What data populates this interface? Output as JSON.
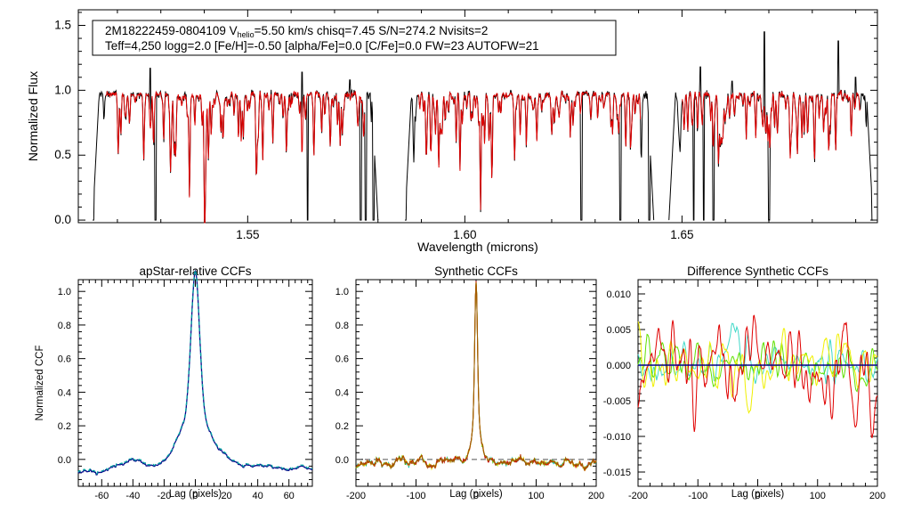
{
  "chart_data": [
    {
      "type": "line",
      "panel": "spectrum",
      "title": "",
      "xlabel": "Wavelength (microns)",
      "ylabel": "Normalized Flux",
      "xlim": [
        1.511,
        1.695
      ],
      "ylim": [
        -0.02,
        1.62
      ],
      "xticks": [
        1.55,
        1.6,
        1.65
      ],
      "xtick_labels": [
        "1.55",
        "1.60",
        "1.65"
      ],
      "yticks": [
        0.0,
        0.5,
        1.0,
        1.5
      ],
      "ytick_labels": [
        "0.0",
        "0.5",
        "1.0",
        "1.5"
      ],
      "chips": [
        [
          1.5143,
          1.58
        ],
        [
          1.5862,
          1.6435
        ],
        [
          1.647,
          1.694
        ]
      ],
      "deep_gaps": [
        1.5144,
        1.5288,
        1.5638,
        1.576,
        1.5772,
        1.579,
        1.5863,
        1.6268,
        1.6358,
        1.6425,
        1.6527,
        1.655,
        1.6572,
        1.67,
        1.6938
      ],
      "spikes": [
        [
          1.5275,
          1.17
        ],
        [
          1.5625,
          1.14
        ],
        [
          1.5735,
          1.08
        ],
        [
          1.644,
          1.08
        ],
        [
          1.6542,
          1.18
        ],
        [
          1.6615,
          1.07
        ],
        [
          1.669,
          1.45
        ],
        [
          1.686,
          1.38
        ],
        [
          1.69,
          1.1
        ]
      ],
      "series": [
        {
          "name": "",
          "color": "#000000",
          "values": []
        },
        {
          "name": "",
          "color": "#e00000",
          "values": []
        }
      ],
      "legend": {
        "position": "top-left",
        "object_id": "2M18222459-0804109",
        "vhelio_prefix": "V",
        "vhelio_sub": "helio",
        "vhelio_value": "=5.50 km/s",
        "chisq": "chisq=7.45",
        "sn": "S/N=274.2",
        "nvisits": "Nvisits=2",
        "params": "Teff=4,250 logg=2.0 [Fe/H]=-0.50 [alpha/Fe]=0.0 [C/Fe]=0.0 FW=23 AUTOFW=21"
      }
    },
    {
      "type": "line",
      "panel": "apstar",
      "title": "apStar-relative CCFs",
      "xlabel": "Lag (pixels)",
      "ylabel": "Normalized CCF",
      "xlim": [
        -75,
        75
      ],
      "ylim": [
        -0.16,
        1.07
      ],
      "xticks": [
        -60,
        -40,
        -20,
        0,
        20,
        40,
        60
      ],
      "xtick_labels": [
        "-60",
        "-40",
        "-20",
        "0",
        "20",
        "40",
        "60"
      ],
      "yticks": [
        0.0,
        0.2,
        0.4,
        0.6,
        0.8,
        1.0
      ],
      "ytick_labels": [
        "0.0",
        "0.2",
        "0.4",
        "0.6",
        "0.8",
        "1.0"
      ],
      "series": [
        {
          "name": "",
          "color": "#0a0a8c",
          "values": []
        },
        {
          "name": "",
          "color": "#00a0a0",
          "values": []
        }
      ]
    },
    {
      "type": "line",
      "panel": "synthetic",
      "title": "Synthetic CCFs",
      "xlabel": "Lag (pixels)",
      "ylabel": "",
      "xlim": [
        -200,
        200
      ],
      "ylim": [
        -0.16,
        1.07
      ],
      "xticks": [
        -200,
        -100,
        0,
        100,
        200
      ],
      "xtick_labels": [
        "-200",
        "-100",
        "0",
        "100",
        "200"
      ],
      "yticks": [
        0.0,
        0.2,
        0.4,
        0.6,
        0.8,
        1.0
      ],
      "ytick_labels": [
        "0.0",
        "0.2",
        "0.4",
        "0.6",
        "0.8",
        "1.0"
      ],
      "series": [
        {
          "name": "",
          "color": "#00c0c0",
          "values": []
        },
        {
          "name": "",
          "color": "#40c000",
          "values": []
        },
        {
          "name": "",
          "color": "#e0e000",
          "values": []
        },
        {
          "name": "",
          "color": "#d00000",
          "values": []
        },
        {
          "name": "",
          "color": "#a06000",
          "values": []
        }
      ],
      "baseline_dashed": 0.0
    },
    {
      "type": "line",
      "panel": "difference",
      "title": "Difference Synthetic CCFs",
      "xlabel": "Lag (pixels)",
      "ylabel": "",
      "xlim": [
        -200,
        200
      ],
      "ylim": [
        -0.017,
        0.012
      ],
      "xticks": [
        -200,
        -100,
        0,
        100,
        200
      ],
      "xtick_labels": [
        "-200",
        "-100",
        "0",
        "100",
        "200"
      ],
      "yticks": [
        -0.015,
        -0.01,
        -0.005,
        0.0,
        0.005,
        0.01
      ],
      "ytick_labels": [
        "-0.015",
        "-0.010",
        "-0.005",
        "0.000",
        "0.005",
        "0.010"
      ],
      "series": [
        {
          "name": "",
          "color": "#40d8c8",
          "values": []
        },
        {
          "name": "",
          "color": "#60e000",
          "values": []
        },
        {
          "name": "",
          "color": "#f0f000",
          "values": []
        },
        {
          "name": "",
          "color": "#e00000",
          "values": []
        }
      ],
      "baseline": 0.0,
      "baseline_color": "#00008b"
    }
  ]
}
